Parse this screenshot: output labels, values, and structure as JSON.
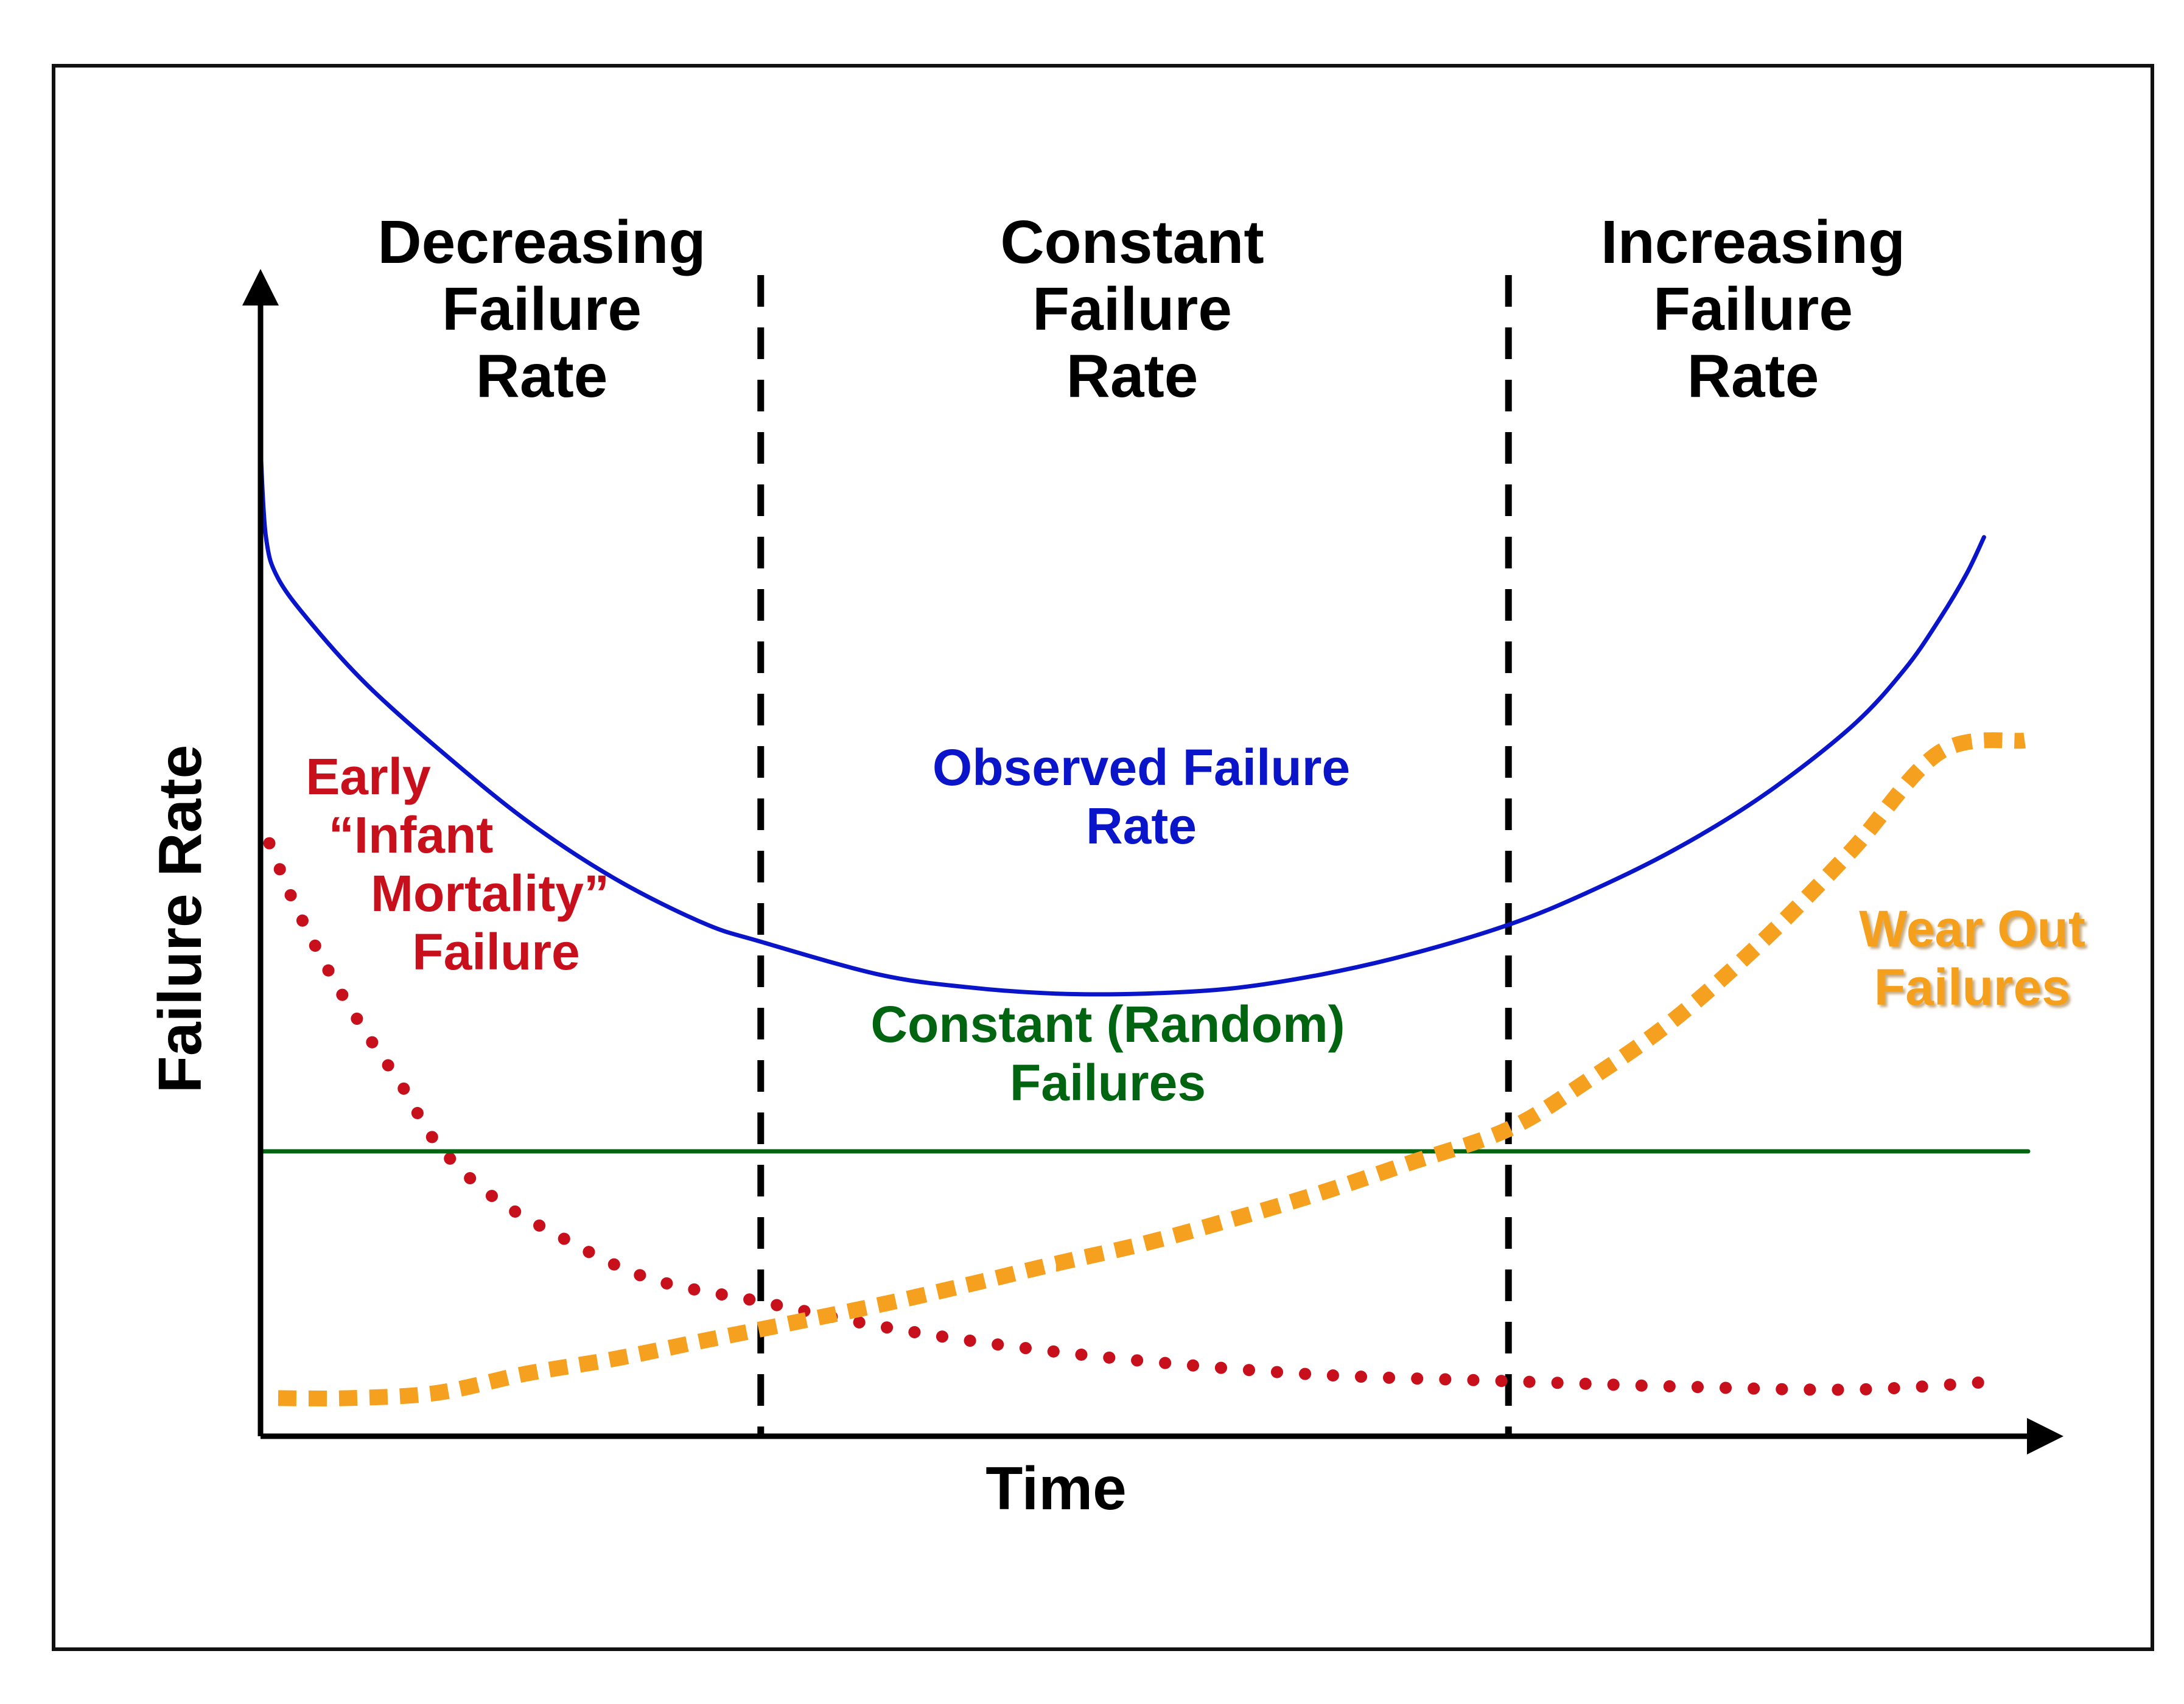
{
  "chart_data": {
    "type": "line",
    "xlabel": "Time",
    "ylabel": "Failure Rate",
    "xlim": [
      0,
      100
    ],
    "ylim": [
      0,
      100
    ],
    "grid": false,
    "axes": {
      "x_ticks": false,
      "y_ticks": false
    },
    "regions": [
      {
        "name": "decreasing",
        "label_lines": [
          "Decreasing",
          "Failure",
          "Rate"
        ],
        "x_range": [
          0,
          28.3
        ]
      },
      {
        "name": "constant",
        "label_lines": [
          "Constant",
          "Failure",
          "Rate"
        ],
        "x_range": [
          28.3,
          70.6
        ]
      },
      {
        "name": "increasing",
        "label_lines": [
          "Increasing",
          "Failure",
          "Rate"
        ],
        "x_range": [
          70.6,
          100
        ]
      }
    ],
    "boundaries": [
      28.3,
      70.6
    ],
    "series": [
      {
        "name": "Observed Failure Rate",
        "label_lines": [
          "Observed Failure",
          "Rate"
        ],
        "color": "#0a14c8",
        "style": "solid",
        "x": [
          0,
          0.3,
          1,
          3,
          6,
          10,
          15,
          20,
          25,
          28.3,
          35,
          40,
          45,
          50,
          55,
          60,
          65,
          70.6,
          75,
          80,
          85,
          90,
          93,
          95,
          96.5,
          97.5
        ],
        "y": [
          93.3,
          85,
          81,
          76.5,
          71,
          65,
          58.2,
          52.7,
          48.5,
          46.7,
          43.6,
          42.4,
          41.8,
          41.8,
          42.3,
          43.6,
          45.5,
          48.3,
          51.3,
          55.4,
          60.5,
          67,
          72.4,
          77.2,
          81.4,
          84.9
        ]
      },
      {
        "name": "Early “Infant Mortality” Failure",
        "label_lines": [
          "Early",
          "“Infant",
          "Mortality”",
          "Failure"
        ],
        "color": "#c8101c",
        "style": "dotted",
        "x": [
          0.5,
          2,
          4,
          6,
          8,
          10,
          13,
          17,
          22,
          28.3,
          35,
          42,
          50,
          60,
          70.6,
          80,
          90,
          97.5
        ],
        "y": [
          56,
          50,
          43.5,
          38,
          33.1,
          27.6,
          22.8,
          18.8,
          14.9,
          12.7,
          10.4,
          8.6,
          7.1,
          5.8,
          5.2,
          4.7,
          4.4,
          5.1
        ]
      },
      {
        "name": "Constant (Random) Failures",
        "label_lines": [
          "Constant (Random)",
          "Failures"
        ],
        "color": "#006410",
        "style": "solid",
        "x": [
          0,
          100
        ],
        "y": [
          26.9,
          26.9
        ]
      },
      {
        "name": "Wear Out Failures",
        "label_lines": [
          "Wear Out",
          "Failures"
        ],
        "color": "#f5a01e",
        "style": "dashed-thick",
        "x": [
          1,
          5,
          10,
          15,
          20,
          25,
          28.3,
          35,
          40,
          45,
          50,
          55,
          60,
          65,
          70.6,
          75,
          80,
          85,
          90,
          95,
          99.8
        ],
        "y": [
          3.6,
          3.6,
          4.1,
          5.9,
          7.3,
          9,
          10.1,
          12.4,
          14.3,
          16.3,
          18.2,
          20.5,
          23,
          25.8,
          29,
          33.5,
          39.4,
          46.8,
          55.3,
          64.6,
          65.7
        ]
      }
    ]
  }
}
